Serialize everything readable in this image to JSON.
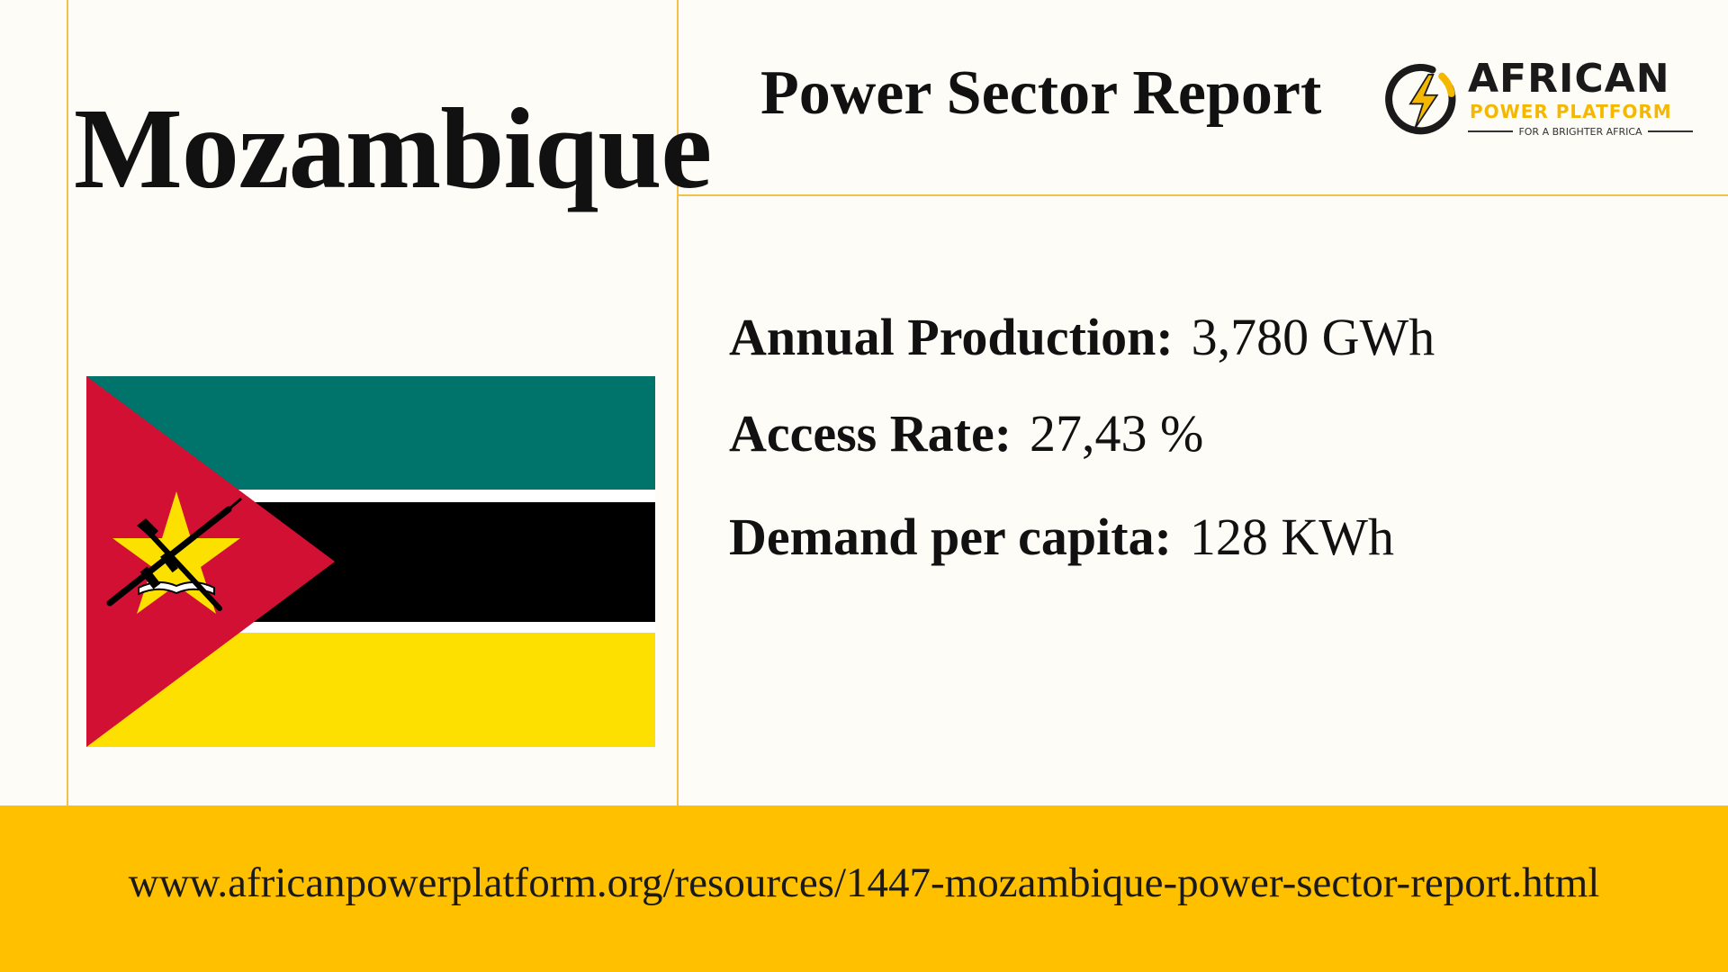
{
  "country": {
    "name": "Mozambique"
  },
  "report": {
    "title": "Power Sector Report"
  },
  "logo": {
    "name": "AFRICAN",
    "subtitle": "POWER PLATFORM",
    "tagline": "FOR A BRIGHTER AFRICA",
    "icon": "lightning-bolt-icon"
  },
  "flag": {
    "icon": "mozambique-flag",
    "colors": {
      "green": "#00736a",
      "black": "#000000",
      "yellow": "#fde000",
      "red": "#d21034",
      "white": "#ffffff",
      "star": "#fce100"
    }
  },
  "stats": [
    {
      "label": "Annual Production:",
      "value": "3,780 GWh"
    },
    {
      "label": "Access Rate:",
      "value": "27,43 %"
    },
    {
      "label": "Demand per capita:",
      "value": "128 KWh"
    }
  ],
  "footer": {
    "url": "www.africanpowerplatform.org/resources/1447-mozambique-power-sector-report.html"
  },
  "theme": {
    "background": "#fdfcf6",
    "accent_line": "#f2c14a",
    "footer_bg": "#ffc000",
    "brand_yellow": "#f5b800"
  }
}
